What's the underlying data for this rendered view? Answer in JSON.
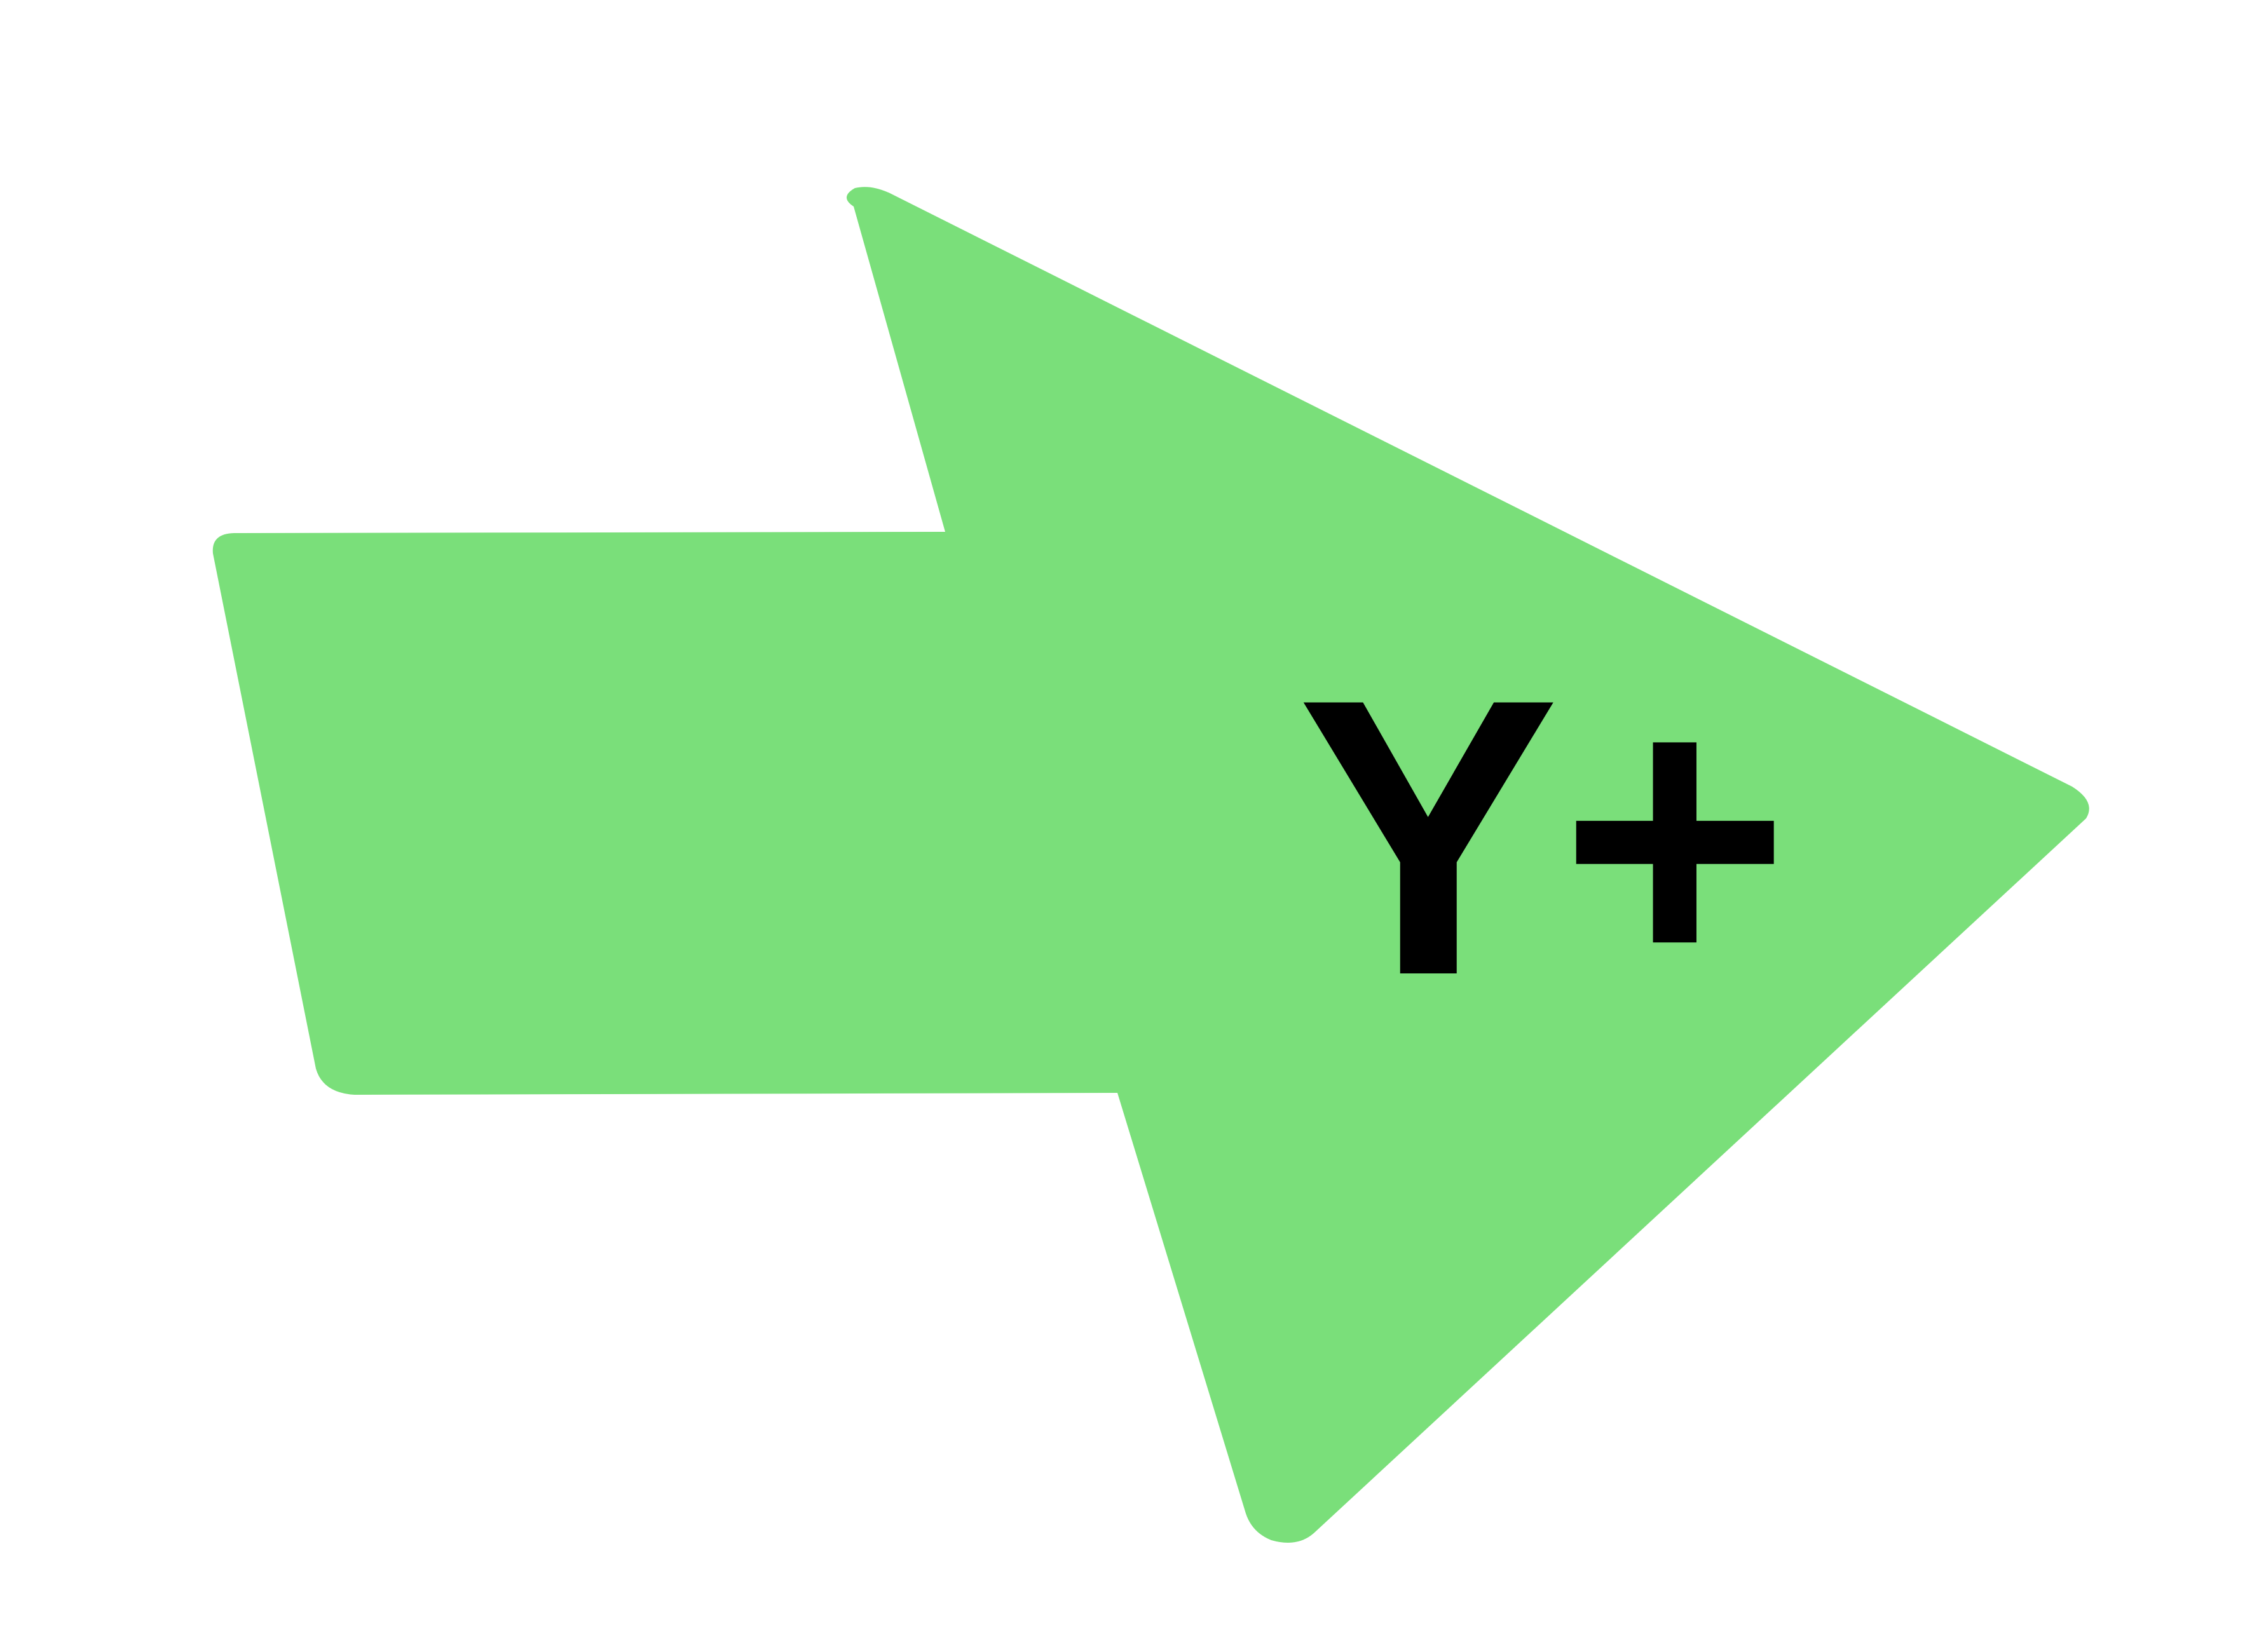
{
  "arrow": {
    "label": "Y+",
    "fill_color": "#7adf7a",
    "text_color": "#000000",
    "background_color": "#ffffff",
    "icon": "arrow-right-icon"
  }
}
